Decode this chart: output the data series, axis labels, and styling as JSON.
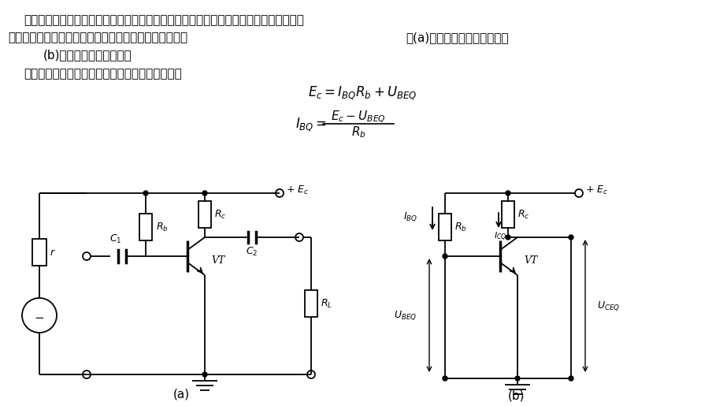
{
  "bg_color": "#ffffff",
  "fig_width": 9.23,
  "fig_height": 5.15,
  "dpi": 100,
  "line1": "在阳容耦合的放大电路中，电容器对于直流来说相当于断路，这样在分析直流参量时，就",
  "line2a": "可以把电容所隔开的部分不作考虑，于是我们便可以把图",
  "line2b": "：(a)所示的放大电路简化为图",
  "line3": "(b)所示的直流等效电路。",
  "line4": "利用直流等效电路可以方便地计算静态工作点，即",
  "label_a": "(a)",
  "label_b": "(b)"
}
